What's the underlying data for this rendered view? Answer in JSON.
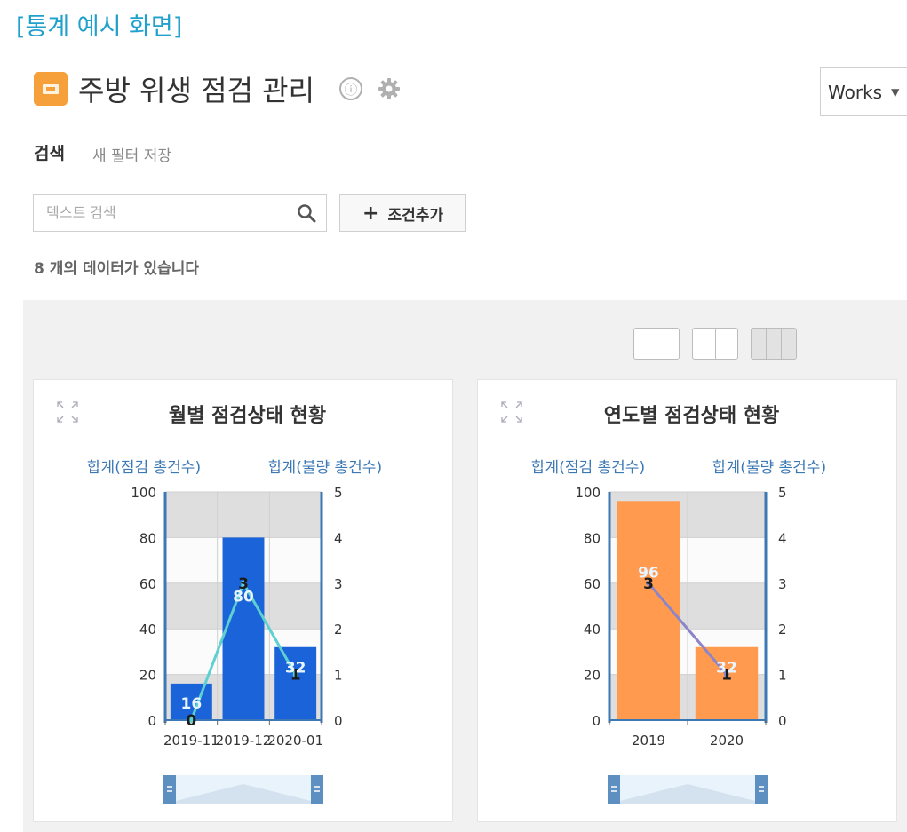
{
  "caption": "[통계 예시 화면]",
  "app": {
    "title": "주방 위생 점검 관리",
    "info_icon": "ⓘ"
  },
  "workspace_select": {
    "value": "Works"
  },
  "search": {
    "label": "검색",
    "save_filter_link": "새 필터 저장",
    "placeholder": "텍스트 검색",
    "add_condition_label": "조건추가"
  },
  "data_count": "8 개의 데이터가 있습니다",
  "colors": {
    "caption": "#21a0cc",
    "bar_blue": "#1a63d8",
    "bar_orange": "#ff9a4e",
    "line_cyan": "#5fd0d0",
    "line_purple": "#8a86c8",
    "axis": "#3c78b4"
  },
  "charts": [
    {
      "title": "월별 점검상태 현황",
      "left_axis_label": "합계(점검 총건수)",
      "right_axis_label": "합계(불량 총건수)",
      "chart_data": {
        "type": "bar",
        "categories": [
          "2019-11",
          "2019-12",
          "2020-01"
        ],
        "series": [
          {
            "name": "합계(점검 총건수)",
            "type": "bar",
            "axis": "left",
            "values": [
              16,
              80,
              32
            ],
            "labels": [
              "16",
              "80",
              "32"
            ]
          },
          {
            "name": "합계(불량 총건수)",
            "type": "line",
            "axis": "right",
            "values": [
              0,
              3,
              1
            ],
            "labels": [
              "0",
              "3",
              "1"
            ]
          }
        ],
        "left_ticks": [
          "100",
          "80",
          "60",
          "40",
          "20",
          "0"
        ],
        "right_ticks": [
          "5",
          "4",
          "3",
          "2",
          "1",
          "0"
        ],
        "ylim_left": [
          0,
          100
        ],
        "ylim_right": [
          0,
          5
        ],
        "grid": true
      }
    },
    {
      "title": "연도별 점검상태 현황",
      "left_axis_label": "합계(점검 총건수)",
      "right_axis_label": "합계(불량 총건수)",
      "chart_data": {
        "type": "bar",
        "categories": [
          "2019",
          "2020"
        ],
        "series": [
          {
            "name": "합계(점검 총건수)",
            "type": "bar",
            "axis": "left",
            "values": [
              96,
              32
            ],
            "labels": [
              "96",
              "32"
            ]
          },
          {
            "name": "합계(불량 총건수)",
            "type": "line",
            "axis": "right",
            "values": [
              3,
              1
            ],
            "labels": [
              "3",
              "1"
            ]
          }
        ],
        "left_ticks": [
          "100",
          "80",
          "60",
          "40",
          "20",
          "0"
        ],
        "right_ticks": [
          "5",
          "4",
          "3",
          "2",
          "1",
          "0"
        ],
        "ylim_left": [
          0,
          100
        ],
        "ylim_right": [
          0,
          5
        ],
        "grid": true
      }
    }
  ]
}
